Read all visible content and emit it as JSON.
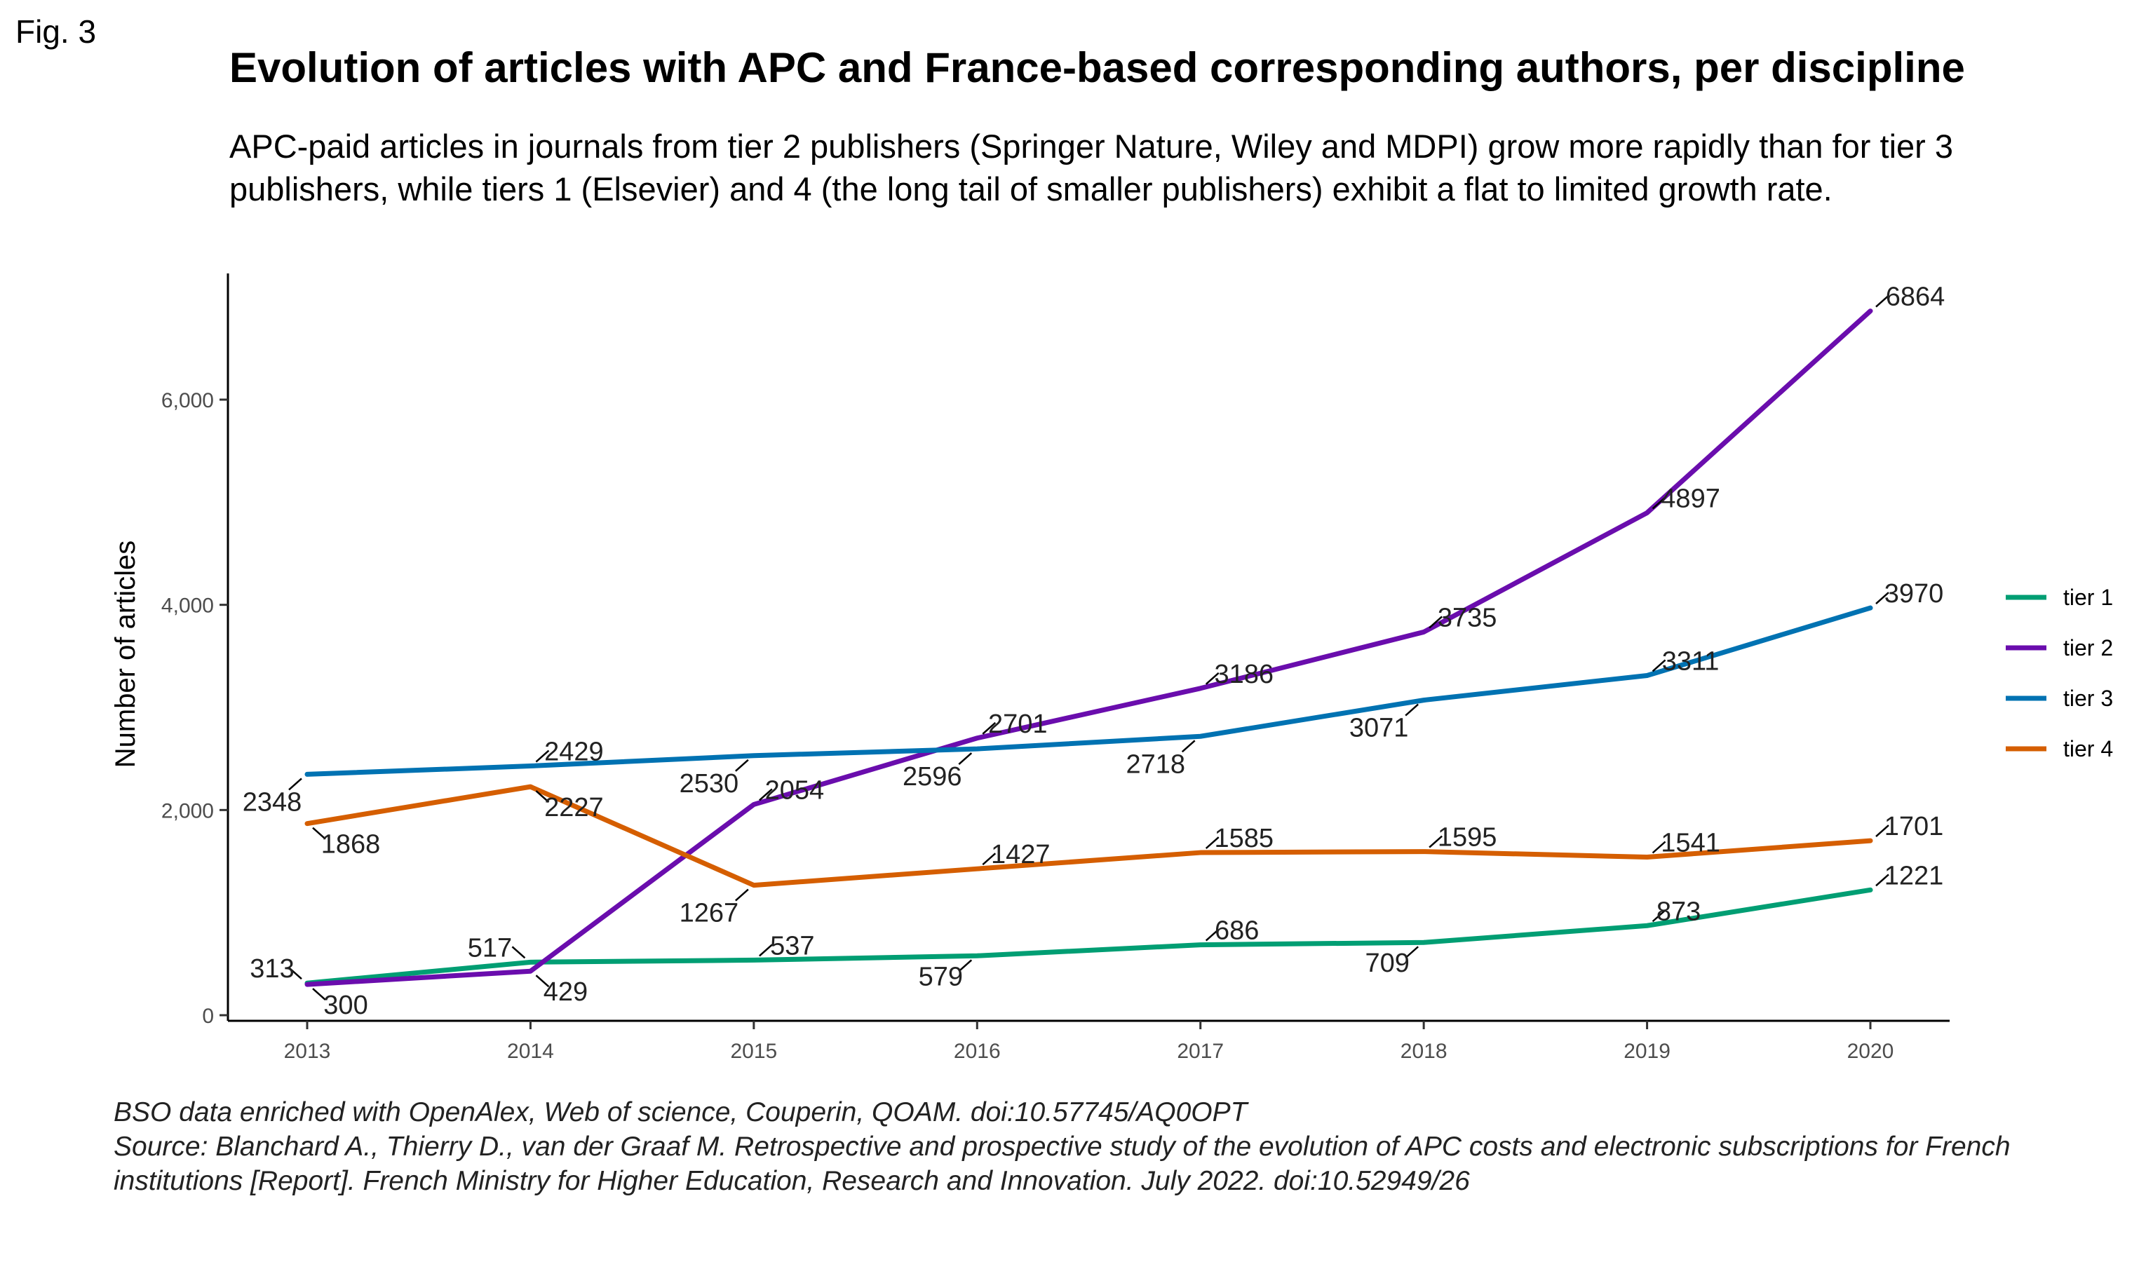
{
  "figure": {
    "label": "Fig. 3",
    "title": "Evolution of articles with APC and France-based corresponding authors, per discipline",
    "subtitle": "APC-paid articles in journals from tier 2 publishers (Springer Nature, Wiley and MDPI) grow more rapidly than for tier 3 publishers, while tiers 1 (Elsevier) and 4 (the long tail of smaller publishers) exhibit a flat to limited growth rate.",
    "caption_line1": "BSO data enriched with OpenAlex, Web of science, Couperin, QOAM. doi:10.57745/AQ0OPT",
    "caption_line2": "Source: Blanchard A., Thierry D., van der Graaf M. Retrospective and prospective study of the evolution of APC costs and electronic subscriptions for French",
    "caption_line3": "institutions [Report]. French Ministry for Higher Education, Research and Innovation. July 2022. doi:10.52949/26"
  },
  "chart_data": {
    "type": "line",
    "title": "Evolution of articles with APC and France-based corresponding authors, per discipline",
    "xlabel": "",
    "ylabel": "Number of articles",
    "x": [
      2013,
      2014,
      2015,
      2016,
      2017,
      2018,
      2019,
      2020
    ],
    "ylim": [
      0,
      7150
    ],
    "yticks": [
      0,
      2000,
      4000,
      6000
    ],
    "ytick_labels": [
      "0",
      "2,000",
      "4,000",
      "6,000"
    ],
    "grid": false,
    "legend_position": "right",
    "series": [
      {
        "name": "tier 1",
        "color": "#009E73",
        "values": [
          313,
          517,
          537,
          579,
          686,
          709,
          873,
          1221
        ]
      },
      {
        "name": "tier 2",
        "color": "#6A0DAD",
        "values": [
          300,
          429,
          2054,
          2701,
          3186,
          3735,
          4897,
          6864
        ]
      },
      {
        "name": "tier 3",
        "color": "#0072B2",
        "values": [
          2348,
          2429,
          2530,
          2596,
          2718,
          3071,
          3311,
          3970
        ]
      },
      {
        "name": "tier 4",
        "color": "#D55E00",
        "values": [
          1868,
          2227,
          1267,
          1427,
          1585,
          1595,
          1541,
          1701
        ]
      }
    ]
  }
}
